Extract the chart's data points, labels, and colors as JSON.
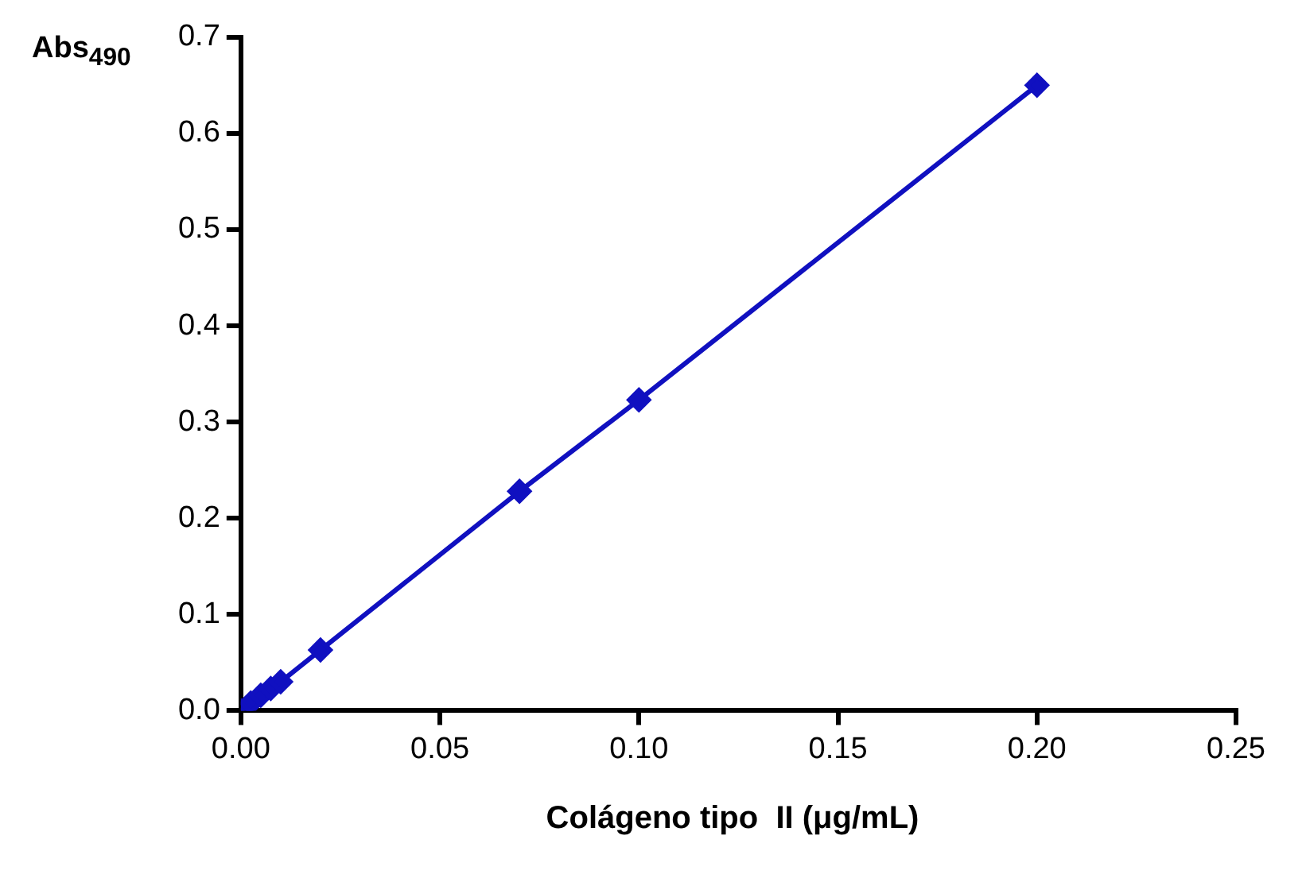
{
  "chart_data": {
    "type": "line",
    "xlabel": "Colágeno tipo  II (μg/mL)",
    "ylabel": "Abs$_{490}$",
    "x": [
      0,
      0.0025,
      0.005,
      0.0075,
      0.01,
      0.02,
      0.07,
      0.1,
      0.2
    ],
    "series": [
      {
        "color": "#1010c0",
        "values": [
          0,
          0.008,
          0.016,
          0.023,
          0.03,
          0.063,
          0.228,
          0.323,
          0.65
        ]
      }
    ],
    "xlim": [
      0,
      0.25
    ],
    "xticks": [
      {
        "value": 0,
        "label": "0.00"
      },
      0.05,
      {
        "value": 0.1,
        "label": "0.10"
      },
      0.15,
      {
        "value": 0.2,
        "label": "0.20"
      },
      0.25
    ],
    "ylim": [
      0,
      0.7
    ],
    "yticks": [
      {
        "value": 0,
        "label": "0.0"
      },
      0.1,
      0.2,
      0.3,
      0.4,
      0.5,
      0.6,
      0.7
    ],
    "grid": false,
    "legend": false,
    "marker": "diamond",
    "line_style": "solid"
  }
}
